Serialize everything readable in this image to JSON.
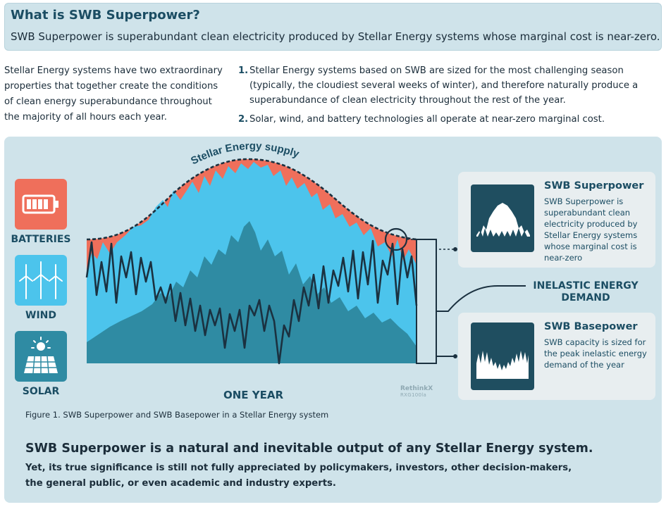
{
  "header": {
    "title": "What is SWB Superpower?",
    "subtitle": "SWB Superpower is superabundant clean electricity produced by Stellar Energy systems whose marginal cost is near-zero."
  },
  "intro": "Stellar Energy systems have two extraordinary properties that together create the conditions of clean energy superabundance throughout the majority of all hours each year.",
  "points": [
    {
      "num": "1.",
      "text": "Stellar Energy systems based on SWB are sized for the most challenging season (typically, the cloudiest several weeks of winter), and therefore naturally produce a superabundance of clean electricity throughout the rest of the year."
    },
    {
      "num": "2.",
      "text": "Solar, wind, and battery technologies all operate at near-zero marginal cost."
    }
  ],
  "diagram": {
    "supply_label": "Stellar Energy supply",
    "x_label": "ONE YEAR",
    "sources": [
      {
        "label": "BATTERIES",
        "icon": "battery-icon",
        "color": "#ef6f5b"
      },
      {
        "label": "WIND",
        "icon": "wind-turbine-icon",
        "color": "#4cc4ec"
      },
      {
        "label": "SOLAR",
        "icon": "solar-panel-icon",
        "color": "#2f8ba3"
      }
    ],
    "demand_label_line1": "INELASTIC ENERGY",
    "demand_label_line2": "DEMAND",
    "watermark": "RethinkX",
    "watermark_code": "RXG100la",
    "colors": {
      "batteries": "#ef6f5b",
      "wind": "#4cc4ec",
      "solar": "#2f8ba3",
      "demand": "#1b3140",
      "panel": "#cfe3ea"
    }
  },
  "cards": [
    {
      "title": "SWB Superpower",
      "body": "SWB Superpower is superabundant clean electricity produced by Stellar Energy systems whose marginal cost is near-zero"
    },
    {
      "title": "SWB Basepower",
      "body": "SWB capacity is sized for the peak inelastic energy demand of the year"
    }
  ],
  "caption": "Figure 1. SWB Superpower and SWB Basepower in a Stellar Energy system",
  "bottom": {
    "heading": "SWB Superpower is a natural and inevitable output of any Stellar Energy system.",
    "text": "Yet, its true significance is still not fully appreciated by policymakers, investors, other decision-makers, the general public, or even academic and industry experts."
  }
}
